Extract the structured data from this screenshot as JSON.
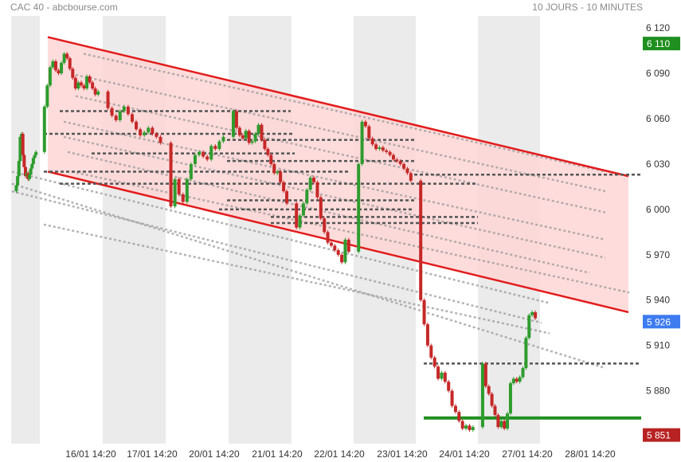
{
  "header": {
    "title": "CAC 40 - abcbourse.com",
    "subtitle": "10 JOURS - 10 MINUTES"
  },
  "colors": {
    "up": "#2e9c2e",
    "down": "#c62828",
    "channel_line": "#e21b1b",
    "channel_fill": "#ffd6d6",
    "support": "#1f8f1f",
    "shade": "#ebebeb",
    "last_badge": "#3d7bf0",
    "high_badge": "#1f8f1f",
    "low_badge": "#b82222"
  },
  "chart_data": {
    "type": "line",
    "title": "CAC 40 - abcbourse.com",
    "subtitle": "10 JOURS - 10 MINUTES",
    "x_labels": [
      "16/01 14:20",
      "17/01 14:20",
      "20/01 14:20",
      "21/01 14:20",
      "22/01 14:20",
      "23/01 14:20",
      "24/01 14:20",
      "27/01 14:20",
      "28/01 14:20"
    ],
    "y_ticks": [
      6120,
      6090,
      6060,
      6030,
      6000,
      5970,
      5940,
      5910,
      5880
    ],
    "ylim": [
      5845,
      6128
    ],
    "grid": false,
    "series": [
      {
        "values": [
          6012,
          6016,
          6022,
          6032,
          6048,
          6050,
          6036,
          6028,
          6022,
          6024,
          6020,
          6023,
          6027,
          6030,
          6034,
          6036,
          6038,
          6068,
          6082,
          6094,
          6098,
          6092,
          6090,
          6097,
          6103,
          6100,
          6093,
          6087,
          6080,
          6084,
          6082,
          6080,
          6088,
          6084,
          6080,
          6076,
          6078,
          6067,
          6062,
          6059,
          6065,
          6068,
          6063,
          6058,
          6053,
          6049,
          6051,
          6054,
          6050,
          6048,
          6044,
          6002,
          6020,
          6010,
          6005,
          6020,
          6030,
          6036,
          6038,
          6035,
          6033,
          6042,
          6040,
          6045,
          6048,
          6065,
          6054,
          6049,
          6047,
          6052,
          6044,
          6045,
          6050,
          6056,
          6046,
          6040,
          6036,
          6030,
          6024,
          6025,
          6018,
          6012,
          6004,
          5988,
          5996,
          6004,
          6013,
          6021,
          6018,
          6008,
          5994,
          5985,
          5978,
          5976,
          5973,
          5970,
          5965,
          5980,
          5972,
          6030,
          6058,
          6055,
          6047,
          6043,
          6040,
          6041,
          6039,
          6038,
          6036,
          6033,
          6032,
          6030,
          6027,
          6024,
          6019,
          5940,
          5924,
          5910,
          5902,
          5896,
          5888,
          5892,
          5886,
          5880,
          5870,
          5866,
          5860,
          5855,
          5857,
          5854,
          5856,
          5898,
          5883,
          5878,
          5870,
          5864,
          5856,
          5860,
          5855,
          5865,
          5885,
          5888,
          5886,
          5889,
          5895,
          5915,
          5930,
          5932,
          5928
        ]
      }
    ],
    "channel": {
      "upper": {
        "start": [
          "15/01 18:00",
          6114
        ],
        "end": [
          "28/01 17:30",
          6022
        ]
      },
      "lower": {
        "start": [
          "15/01 18:00",
          6025
        ],
        "end": [
          "28/01 17:30",
          5932
        ]
      }
    },
    "horizontal_levels": [
      6065,
      6050,
      6046,
      6037,
      6032,
      6025,
      6023,
      6017,
      6006,
      6000,
      5995,
      5991,
      5898
    ],
    "support_level": 5862,
    "badges": {
      "high": "6 110",
      "last": "5 926",
      "low": "5 851"
    }
  }
}
